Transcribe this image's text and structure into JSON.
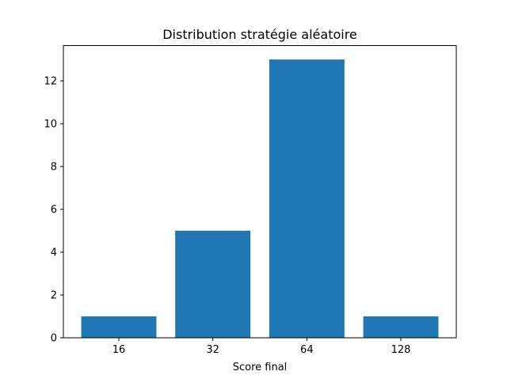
{
  "chart_data": {
    "type": "bar",
    "title": "Distribution stratégie aléatoire",
    "xlabel": "Score final",
    "ylabel": "",
    "categories": [
      "16",
      "32",
      "64",
      "128"
    ],
    "values": [
      1,
      5,
      13,
      1
    ],
    "ylim": [
      0,
      13.65
    ],
    "yticks": [
      0,
      2,
      4,
      6,
      8,
      10,
      12
    ],
    "bar_color": "#1f77b4",
    "grid": false,
    "legend": "none"
  }
}
